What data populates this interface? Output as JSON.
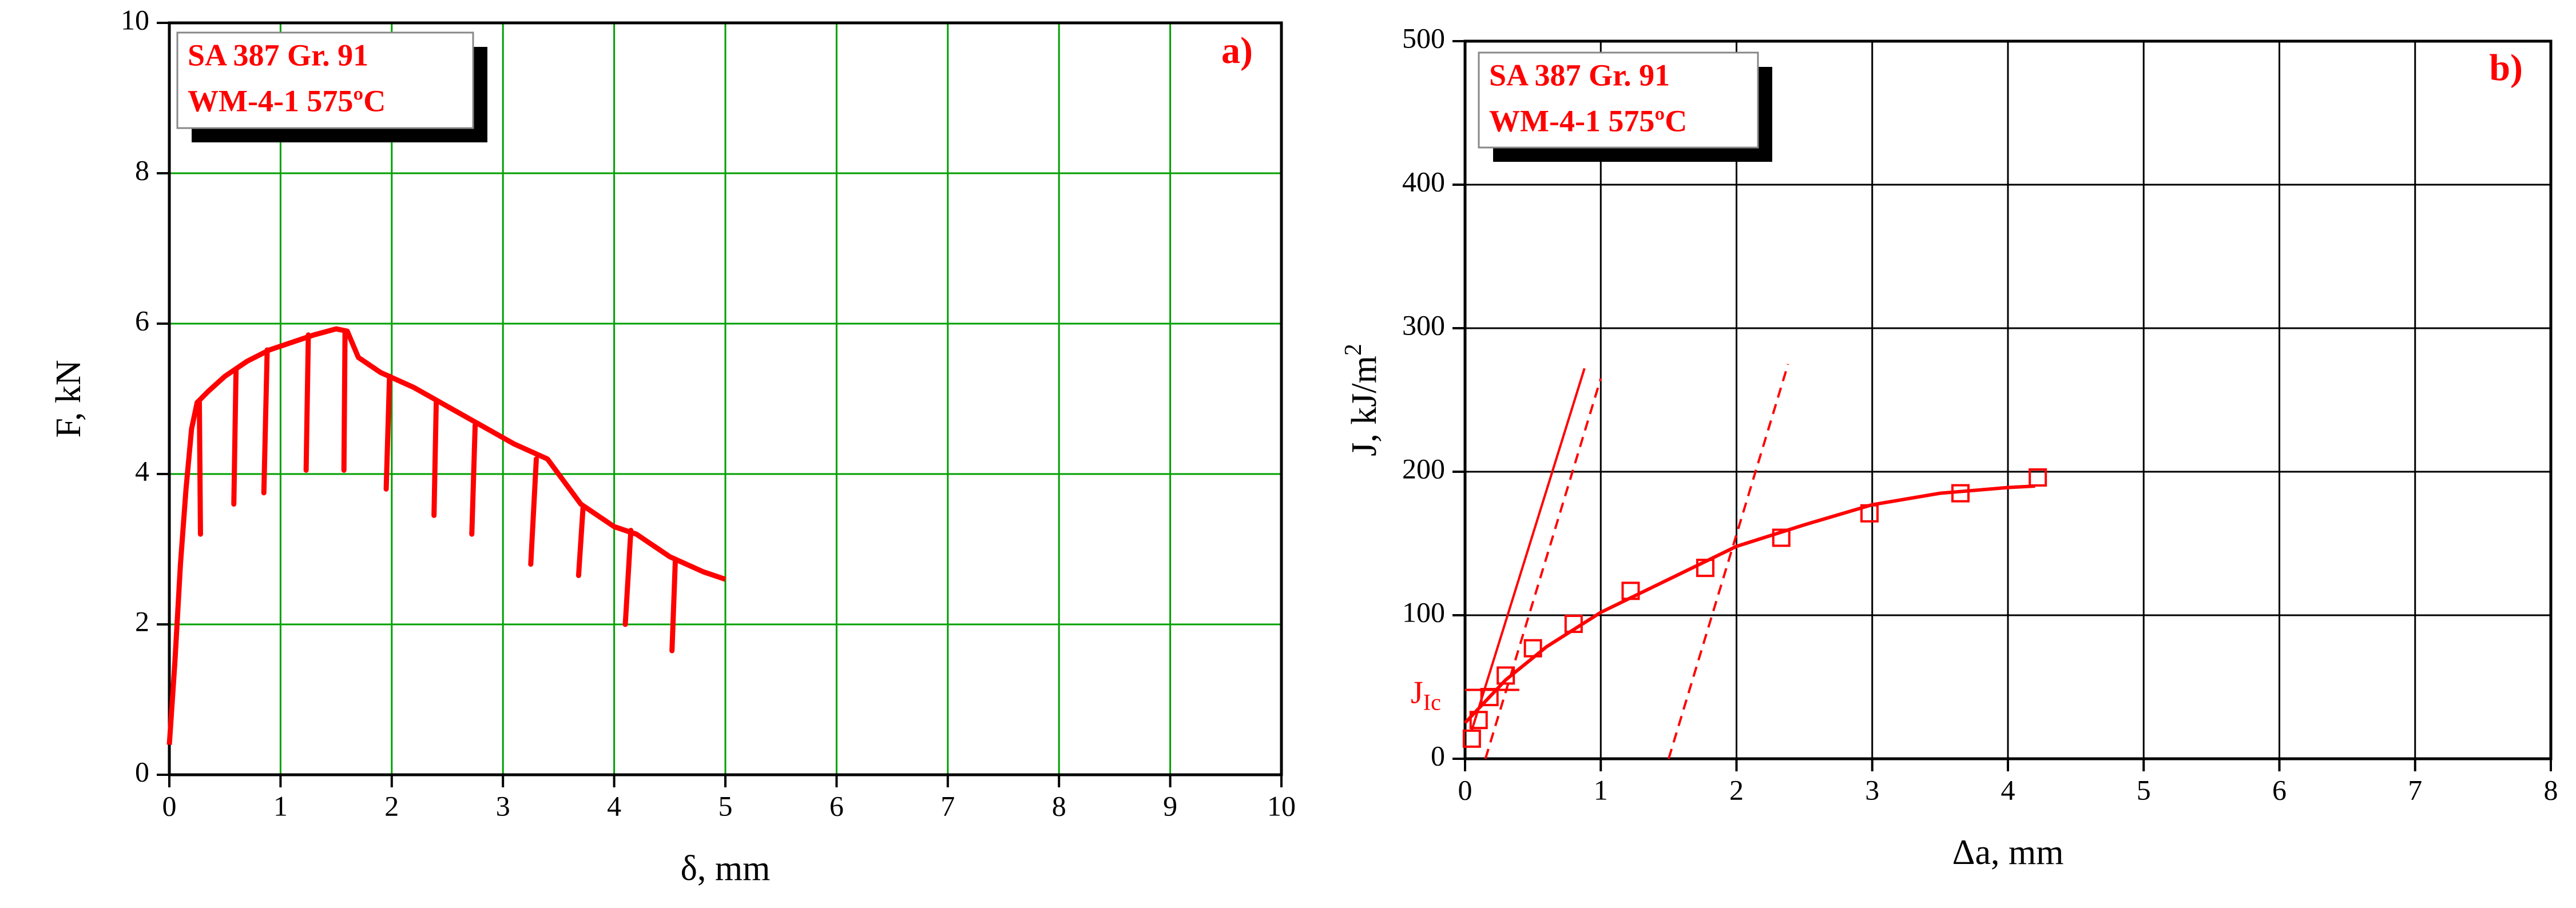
{
  "chart_data": [
    {
      "type": "line",
      "annotation": "a)",
      "box_lines": [
        "SA 387 Gr. 91",
        "WM-4-1  575ºC"
      ],
      "xlabel": "δ, mm",
      "ylabel": "F,  kN",
      "xlim": [
        0,
        10
      ],
      "ylim": [
        0,
        10
      ],
      "xticks": [
        0,
        1,
        2,
        3,
        4,
        5,
        6,
        7,
        8,
        9,
        10
      ],
      "yticks": [
        0,
        2,
        4,
        6,
        8,
        10
      ],
      "grid": true,
      "grid_color": "#00a000",
      "color": "#ff0000",
      "x": [
        0,
        0.05,
        0.1,
        0.15,
        0.2,
        0.25,
        0.35,
        0.5,
        0.7,
        0.9,
        1.1,
        1.3,
        1.5,
        1.6,
        1.7,
        1.9,
        2.2,
        2.5,
        2.8,
        3.1,
        3.4,
        3.5,
        3.7,
        4.0,
        4.2,
        4.5,
        4.8,
        5.0
      ],
      "values": [
        0.4,
        1.5,
        2.8,
        3.8,
        4.6,
        4.95,
        5.1,
        5.3,
        5.5,
        5.65,
        5.75,
        5.85,
        5.93,
        5.9,
        5.55,
        5.35,
        5.15,
        4.9,
        4.65,
        4.4,
        4.2,
        4.0,
        3.6,
        3.3,
        3.2,
        2.9,
        2.7,
        2.6
      ],
      "unloading": [
        {
          "x": [
            0.27,
            0.28
          ],
          "values": [
            4.95,
            3.2
          ]
        },
        {
          "x": [
            0.6,
            0.58
          ],
          "values": [
            5.4,
            3.6
          ]
        },
        {
          "x": [
            0.88,
            0.85
          ],
          "values": [
            5.65,
            3.75
          ]
        },
        {
          "x": [
            1.25,
            1.23
          ],
          "values": [
            5.85,
            4.05
          ]
        },
        {
          "x": [
            1.58,
            1.57
          ],
          "values": [
            5.9,
            4.05
          ]
        },
        {
          "x": [
            1.98,
            1.95
          ],
          "values": [
            5.3,
            3.8
          ]
        },
        {
          "x": [
            2.4,
            2.38
          ],
          "values": [
            4.95,
            3.45
          ]
        },
        {
          "x": [
            2.75,
            2.72
          ],
          "values": [
            4.65,
            3.2
          ]
        },
        {
          "x": [
            3.3,
            3.25
          ],
          "values": [
            4.2,
            2.8
          ]
        },
        {
          "x": [
            3.72,
            3.68
          ],
          "values": [
            3.55,
            2.65
          ]
        },
        {
          "x": [
            4.15,
            4.1
          ],
          "values": [
            3.25,
            2.0
          ]
        },
        {
          "x": [
            4.55,
            4.52
          ],
          "values": [
            2.85,
            1.65
          ]
        }
      ]
    },
    {
      "type": "scatter",
      "annotation": "b)",
      "box_lines": [
        "SA 387 Gr. 91",
        "WM-4-1  575ºC"
      ],
      "xlabel": "Δa,  mm",
      "ylabel": "J,  kJ/m",
      "ylabel_sup": "2",
      "j_label": "J",
      "j_sub": "Ic",
      "xlim": [
        0,
        8
      ],
      "ylim": [
        0,
        500
      ],
      "xticks": [
        0,
        1,
        2,
        3,
        4,
        5,
        6,
        7,
        8
      ],
      "yticks": [
        0,
        100,
        200,
        300,
        400,
        500
      ],
      "grid": true,
      "grid_color": "#000000",
      "color": "#ff0000",
      "x": [
        0.05,
        0.1,
        0.18,
        0.3,
        0.5,
        0.8,
        1.22,
        1.77,
        2.33,
        2.98,
        3.65,
        4.22
      ],
      "values": [
        14,
        27,
        43,
        58,
        77,
        94,
        117,
        133,
        154,
        171,
        185,
        196
      ],
      "fit": {
        "x": [
          0,
          0.3,
          0.6,
          1,
          1.5,
          2,
          2.5,
          3,
          3.5,
          4,
          4.2
        ],
        "values": [
          25,
          55,
          78,
          102,
          125,
          148,
          163,
          177,
          185,
          189,
          190
        ]
      },
      "lines": [
        {
          "x": [
            0.05,
            0.88
          ],
          "values": [
            20,
            272
          ],
          "dashed": false
        },
        {
          "x": [
            0.15,
            1.0
          ],
          "values": [
            0,
            265
          ],
          "dashed": true
        },
        {
          "x": [
            1.5,
            2.38
          ],
          "values": [
            0,
            275
          ],
          "dashed": true
        },
        {
          "x": [
            0,
            0.4
          ],
          "values": [
            48,
            48
          ],
          "dashed": false
        }
      ]
    }
  ]
}
